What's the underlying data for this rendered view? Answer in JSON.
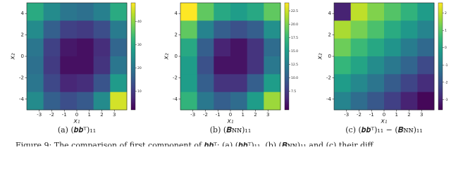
{
  "chart_data": [
    {
      "type": "heatmap",
      "colormap": "viridis",
      "caption": "(a) (𝒃𝒃ᵀ)₁₁",
      "xlabel": "x₁",
      "ylabel": "x₂",
      "xlim": [
        -4,
        4
      ],
      "ylim": [
        -5,
        5
      ],
      "xticks": [
        -3,
        -2,
        -1,
        0,
        1,
        2,
        3
      ],
      "yticks": [
        -4,
        -2,
        0,
        2,
        4
      ],
      "zlim": [
        2,
        48
      ],
      "zticks": [
        10,
        20,
        30,
        40
      ],
      "z": [
        [
          30,
          24,
          20,
          19,
          22,
          30
        ],
        [
          24,
          16,
          11,
          10,
          13,
          21
        ],
        [
          20,
          11,
          5,
          4,
          8,
          17
        ],
        [
          19,
          10,
          4,
          4,
          9,
          20
        ],
        [
          20,
          12,
          7,
          8,
          14,
          27
        ],
        [
          24,
          16,
          13,
          15,
          24,
          45
        ]
      ]
    },
    {
      "type": "heatmap",
      "colormap": "viridis",
      "caption": "(b) (𝑩ɴɴ)₁₁",
      "xlabel": "x₁",
      "ylabel": "x₂",
      "xlim": [
        -4,
        4
      ],
      "ylim": [
        -5,
        5
      ],
      "xticks": [
        -3,
        -2,
        -1,
        0,
        1,
        2,
        3
      ],
      "yticks": [
        -4,
        -2,
        0,
        2,
        4
      ],
      "zlim": [
        4,
        24
      ],
      "zticks": [
        7.5,
        {
          "value": 10,
          "label": "10.0"
        },
        12.5,
        {
          "value": 15,
          "label": "15.0"
        },
        17.5,
        {
          "value": 20,
          "label": "20.0"
        },
        22.5
      ],
      "z": [
        [
          24,
          19,
          16,
          15,
          16,
          19
        ],
        [
          19,
          13,
          10,
          9,
          10,
          14
        ],
        [
          16,
          10,
          6,
          5,
          7,
          11
        ],
        [
          15,
          9,
          5,
          5,
          7,
          12
        ],
        [
          15,
          10,
          7,
          7,
          10,
          15
        ],
        [
          17,
          12,
          10,
          11,
          15,
          21
        ]
      ]
    },
    {
      "type": "heatmap",
      "colormap": "viridis",
      "caption": "(c) (𝒃𝒃ᵀ)₁₁ − (𝑩ɴɴ)₁₁",
      "xlabel": "x₁",
      "ylabel": "x₂",
      "xlim": [
        -4,
        4
      ],
      "ylim": [
        -5,
        5
      ],
      "xticks": [
        -3,
        -2,
        -1,
        0,
        1,
        2,
        3
      ],
      "yticks": [
        -4,
        -2,
        0,
        2,
        4
      ],
      "zlim": [
        -3.6,
        2.6
      ],
      "zticks": [
        -3,
        -2,
        -1,
        0,
        1,
        2
      ],
      "z": [
        [
          -3.0,
          2.0,
          1.4,
          0.9,
          0.4,
          -0.2
        ],
        [
          1.8,
          1.3,
          0.8,
          0.2,
          -0.3,
          -0.8
        ],
        [
          1.2,
          0.6,
          0.1,
          -0.4,
          -1.0,
          -1.5
        ],
        [
          0.5,
          0,
          -0.6,
          -1.1,
          -1.6,
          -2.2
        ],
        [
          -0.2,
          -0.7,
          -1.2,
          -1.8,
          -2.3,
          -2.8
        ],
        [
          -0.8,
          -1.4,
          -1.9,
          -2.4,
          -3.0,
          -3.5
        ]
      ]
    }
  ],
  "figure_caption": "Figure 9: The comparison of first component of 𝒃𝒃ᵀ: (a) (𝒃𝒃ᵀ)₁₁, (b) (𝑩ɴɴ)₁₁ and (c) their diff"
}
